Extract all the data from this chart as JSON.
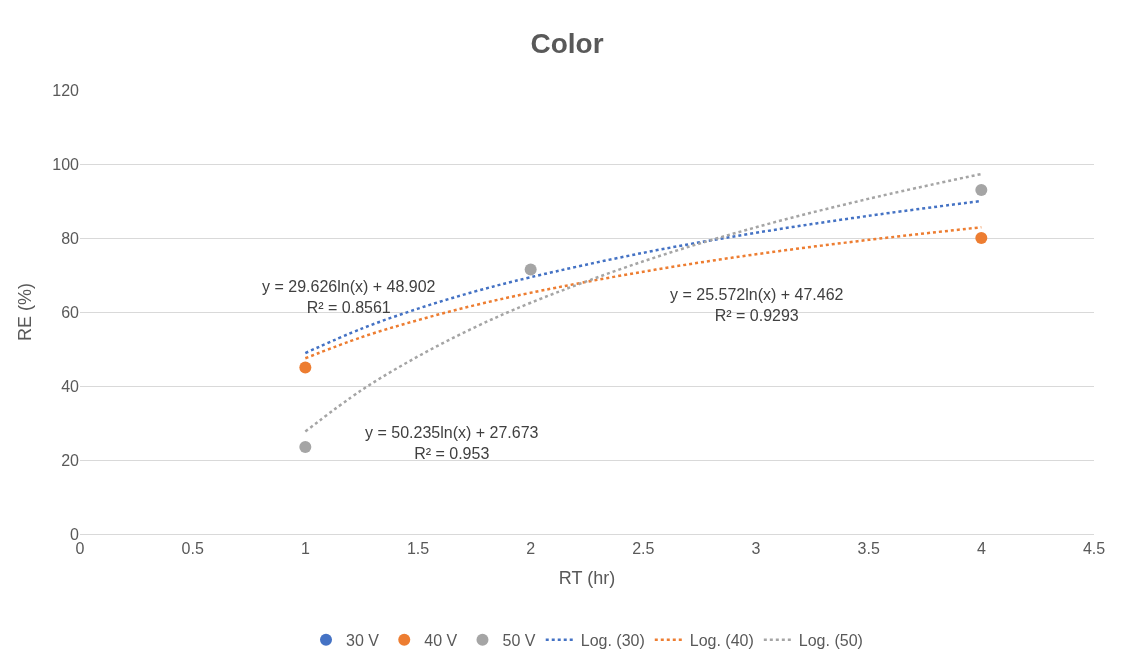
{
  "chart_data": {
    "type": "scatter",
    "title": "Color",
    "xlabel": "RT (hr)",
    "ylabel": "RE (%)",
    "xlim": [
      0,
      4.5
    ],
    "xticks": [
      0,
      0.5,
      1,
      1.5,
      2,
      2.5,
      3,
      3.5,
      4,
      4.5
    ],
    "ylim": [
      0,
      120
    ],
    "yticks": [
      0,
      20,
      40,
      60,
      80,
      100,
      120
    ],
    "grid": "y",
    "legend": "bottom",
    "x": [
      1,
      2,
      4
    ],
    "series": [
      {
        "name": "30 V",
        "color": "#4472c4",
        "values": [
          null,
          null,
          null
        ],
        "marker": "circle"
      },
      {
        "name": "40 V",
        "color": "#ed7d31",
        "values": [
          45,
          null,
          80
        ],
        "marker": "circle"
      },
      {
        "name": "50 V",
        "color": "#a5a5a5",
        "values": [
          23.5,
          71.5,
          93
        ],
        "marker": "circle"
      },
      {
        "name": "Log. (30)",
        "type": "line",
        "color": "#4472c4",
        "line_style": "dotted",
        "marker": "none",
        "x": [
          1,
          1.25,
          1.5,
          1.75,
          2,
          2.5,
          3,
          3.5,
          4
        ],
        "values": [
          48.9,
          55.5,
          60.9,
          65.5,
          69.4,
          76.0,
          81.4,
          86.0,
          90.0
        ]
      },
      {
        "name": "Log. (40)",
        "type": "line",
        "color": "#ed7d31",
        "line_style": "dotted",
        "marker": "none",
        "x": [
          1,
          1.25,
          1.5,
          1.75,
          2,
          2.5,
          3,
          3.5,
          4
        ],
        "values": [
          47.5,
          53.2,
          57.8,
          61.8,
          65.2,
          70.9,
          75.6,
          79.5,
          82.9
        ]
      },
      {
        "name": "Log. (50)",
        "type": "line",
        "color": "#a5a5a5",
        "line_style": "dotted",
        "marker": "none",
        "x": [
          1,
          1.25,
          1.5,
          1.75,
          2,
          2.5,
          3,
          3.5,
          4
        ],
        "values": [
          27.7,
          38.9,
          48.0,
          55.8,
          62.5,
          73.7,
          82.9,
          90.6,
          97.3
        ]
      }
    ],
    "annotations": [
      "y = 29.626ln(x) + 48.902\nR² = 0.8561",
      "y = 50.235ln(x) + 27.673\nR² = 0.953",
      "y = 25.572ln(x) + 47.462\nR² = 0.9293"
    ]
  }
}
